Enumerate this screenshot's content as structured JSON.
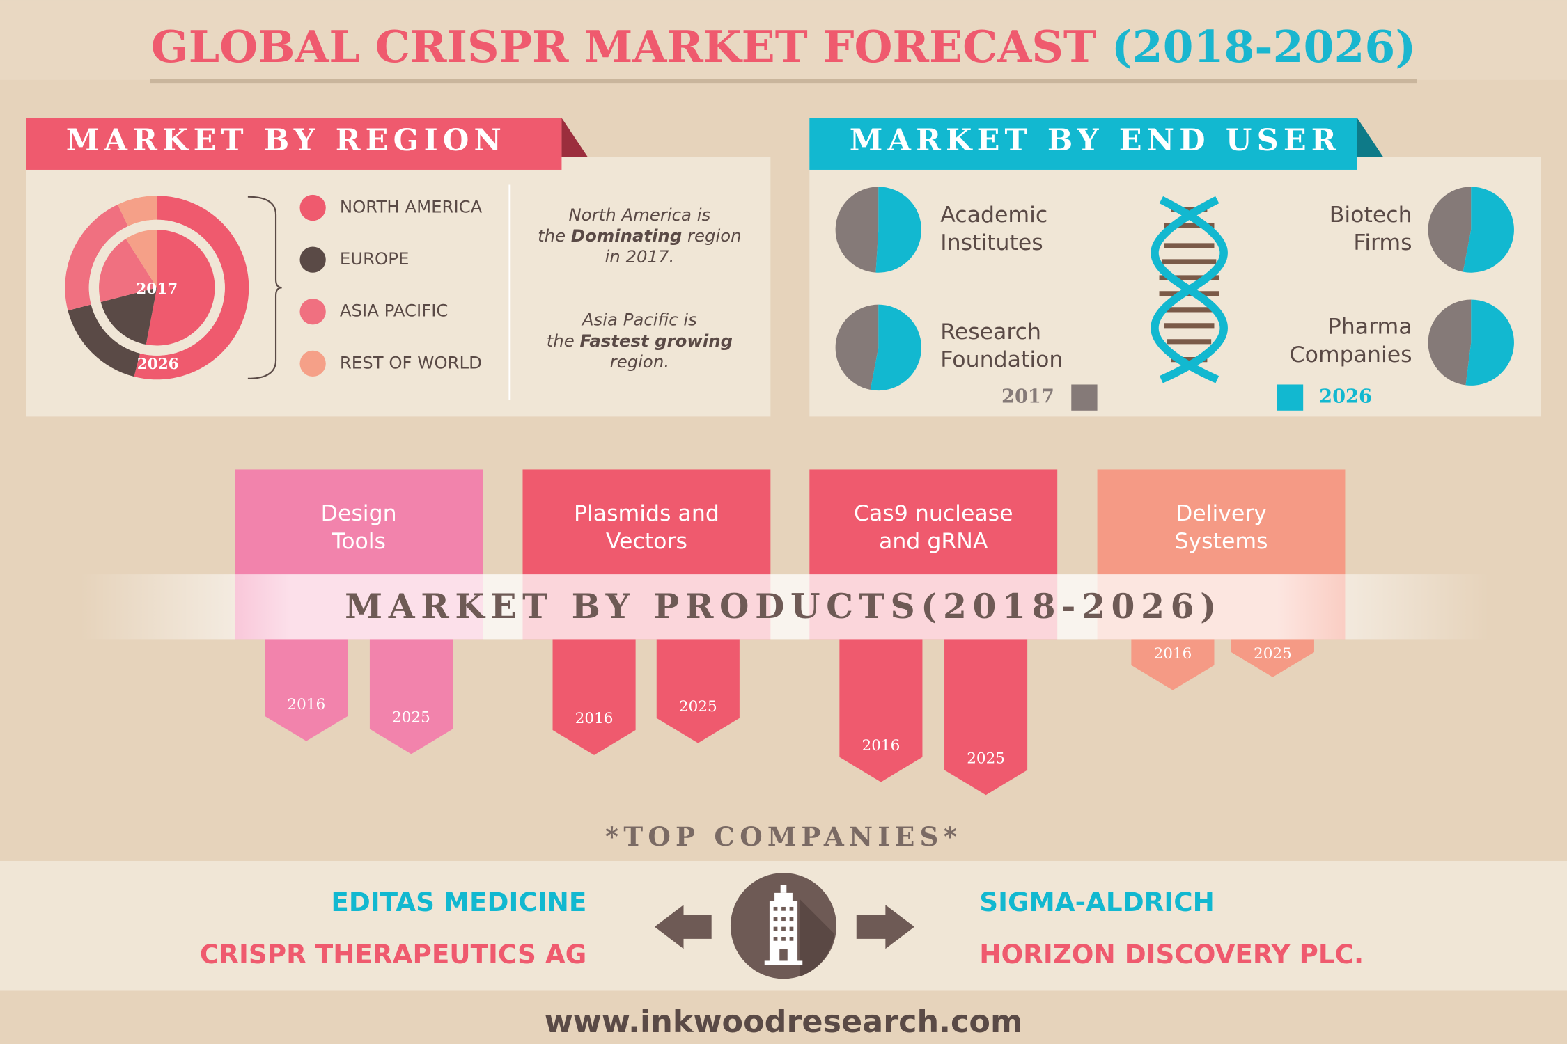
{
  "title": {
    "main": "GLOBAL CRISPR MARKET FORECAST",
    "years": "(2018-2026)"
  },
  "region": {
    "heading": "MARKET BY REGION",
    "legend": [
      "NORTH AMERICA",
      "EUROPE",
      "ASIA PACIFIC",
      "REST OF WORLD"
    ],
    "colors": [
      "#ef5a6e",
      "#5a4a46",
      "#f07080",
      "#f5a088"
    ],
    "series": [
      {
        "name": "2017",
        "values": [
          53,
          18,
          20,
          9
        ]
      },
      {
        "name": "2026",
        "values": [
          54,
          17,
          22,
          7
        ]
      }
    ],
    "notes": [
      [
        [
          {
            "text": "North America is"
          }
        ],
        [
          {
            "text": "the "
          },
          {
            "text": "Dominating",
            "bold": true
          },
          {
            "text": " region"
          }
        ],
        [
          {
            "text": "in 2017."
          }
        ]
      ],
      [
        [
          {
            "text": "Asia Pacific is"
          }
        ],
        [
          {
            "text": "the "
          },
          {
            "text": "Fastest growing",
            "bold": true
          }
        ],
        [
          {
            "text": "region."
          }
        ]
      ]
    ]
  },
  "end_user": {
    "heading": "MARKET BY END USER",
    "series": [
      {
        "name": "2017",
        "color": "#857a78"
      },
      {
        "name": "2026",
        "color": "#12b8d0"
      }
    ],
    "segments": [
      {
        "label": [
          "Academic",
          "Institutes"
        ],
        "values": [
          49,
          51
        ]
      },
      {
        "label": [
          "Research",
          "Foundation"
        ],
        "values": [
          47,
          53
        ]
      },
      {
        "label": [
          "Biotech",
          "Firms"
        ],
        "values": [
          47,
          53
        ]
      },
      {
        "label": [
          "Pharma",
          "Companies"
        ],
        "values": [
          48,
          52
        ]
      }
    ]
  },
  "products": {
    "heading": "MARKET BY PRODUCTS(2018-2026)",
    "years": [
      "2016",
      "2025"
    ],
    "items": [
      {
        "label": [
          "Design",
          "Tools"
        ],
        "color": "#f283ac",
        "values": [
          102,
          115
        ]
      },
      {
        "label": [
          "Plasmids and",
          "Vectors"
        ],
        "color": "#ef5a6e",
        "values": [
          116,
          104
        ]
      },
      {
        "label": [
          "Cas9 nuclease",
          "and gRNA"
        ],
        "color": "#ef5a6e",
        "values": [
          143,
          156
        ]
      },
      {
        "label": [
          "Delivery",
          "Systems"
        ],
        "color": "#f59a85",
        "values": [
          51,
          38
        ]
      }
    ]
  },
  "companies": {
    "heading": "*TOP COMPANIES*",
    "left": [
      "EDITAS MEDICINE",
      "CRISPR THERAPEUTICS AG"
    ],
    "right": [
      "SIGMA-ALDRICH",
      "HORIZON DISCOVERY PLC."
    ]
  },
  "footer": "www.inkwoodresearch.com"
}
